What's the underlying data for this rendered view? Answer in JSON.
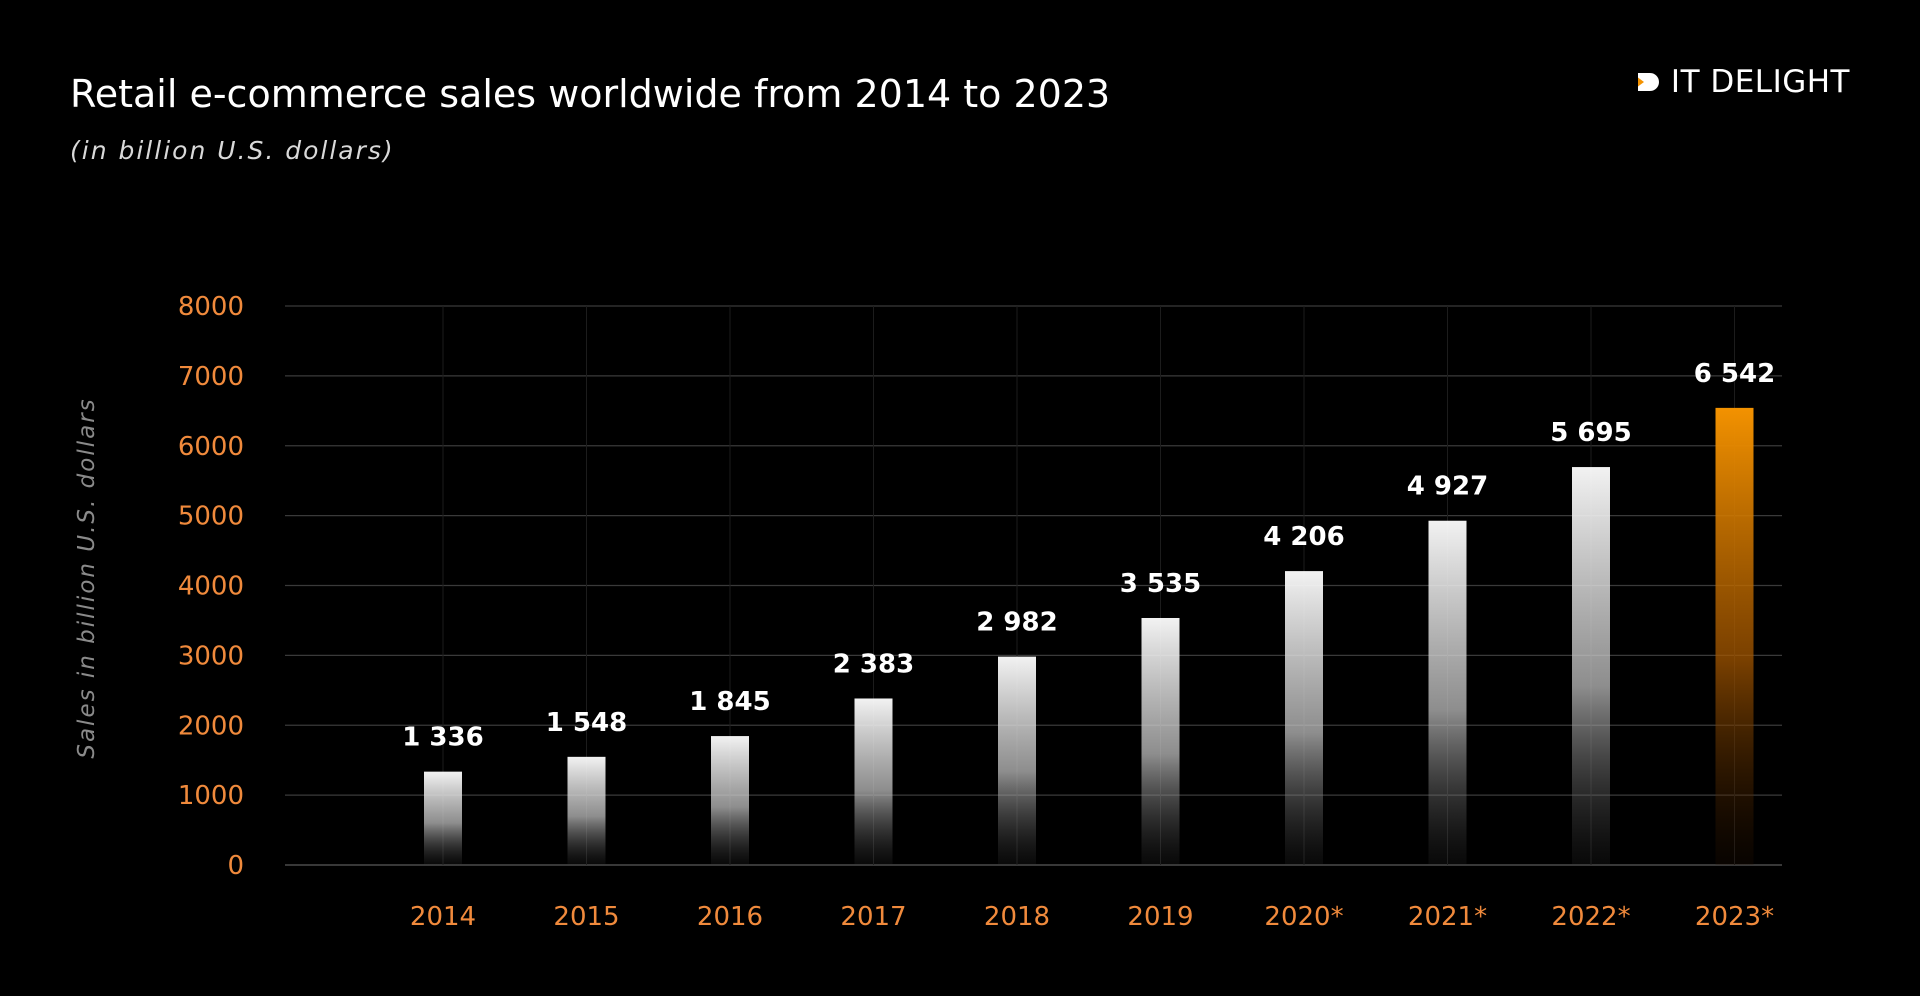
{
  "header": {
    "title": "Retail e-commerce sales worldwide from 2014 to 2023",
    "subtitle": "(in billion U.S. dollars)"
  },
  "brand": {
    "name": "IT DELIGHT",
    "icon": "it-delight-logo-icon",
    "accent_color": "#f39200"
  },
  "chart_data": {
    "type": "bar",
    "title": "Retail e-commerce sales worldwide from 2014 to 2023",
    "subtitle": "(in billion U.S. dollars)",
    "xlabel": "",
    "ylabel": "Sales in billion U.S. dollars",
    "categories": [
      "2014",
      "2015",
      "2016",
      "2017",
      "2018",
      "2019",
      "2020*",
      "2021*",
      "2022*",
      "2023*"
    ],
    "values": [
      1336,
      1548,
      1845,
      2383,
      2982,
      3535,
      4206,
      4927,
      5695,
      6542
    ],
    "value_labels": [
      "1 336",
      "1 548",
      "1 845",
      "2 383",
      "2 982",
      "3 535",
      "4 206",
      "4 927",
      "5 695",
      "6 542"
    ],
    "ylim": [
      0,
      8000
    ],
    "yticks": [
      "0",
      "1000",
      "2000",
      "3000",
      "4000",
      "5000",
      "6000",
      "7000",
      "8000"
    ],
    "grid": true,
    "legend": "none",
    "colors": {
      "bar": "#ffffff",
      "highlight_bar": "#f39200",
      "tick_text": "#f08a3c",
      "grid": "#3a3a3a",
      "background": "#000000"
    },
    "highlight_index": 9
  }
}
